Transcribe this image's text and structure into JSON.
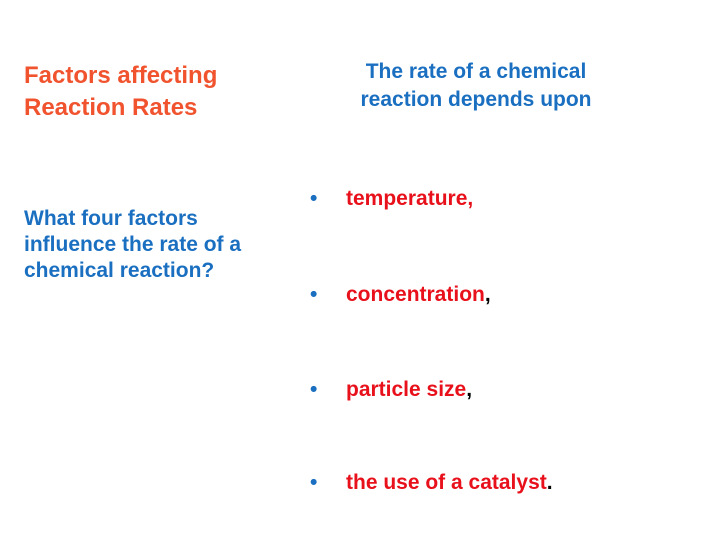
{
  "slide": {
    "title": "Factors affecting Reaction Rates",
    "question": "What four factors influence the rate of a chemical reaction?",
    "intro_line1": "The rate of a chemical",
    "intro_line2": "reaction depends upon",
    "bullet_symbol": "•",
    "factors": [
      {
        "term": "temperature,",
        "punct": ""
      },
      {
        "term": "concentration",
        "punct": ","
      },
      {
        "term": "particle size",
        "punct": ","
      },
      {
        "term": "the use of a catalyst",
        "punct": "."
      }
    ],
    "colors": {
      "title": "#f0532d",
      "blue_text": "#1a6fc0",
      "term": "#e8101b",
      "punctuation": "#000000",
      "background": "#ffffff"
    }
  }
}
